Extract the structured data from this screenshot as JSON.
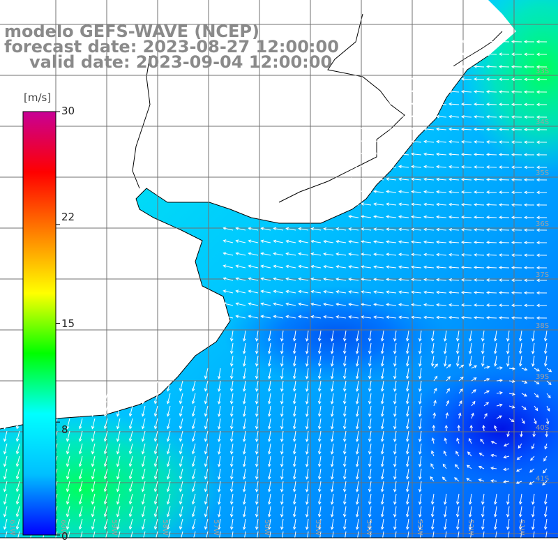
{
  "header": {
    "model_line": "modelo GEFS-WAVE (NCEP)",
    "forecast_line": "forecast date: 2023-08-27 12:00:00",
    "valid_line": "valid date: 2023-09-04 12:00:00",
    "text_color": "#8a8a8a"
  },
  "colorbar": {
    "unit": "[m/s]",
    "ticks": [
      "30",
      "22",
      "15",
      "8",
      "0"
    ],
    "tick_values": [
      30,
      22,
      15,
      8,
      0
    ],
    "min": 0,
    "max": 30,
    "gradient": [
      "#0000ff",
      "#00bfff",
      "#00ffff",
      "#00ff00",
      "#ffff00",
      "#ff8000",
      "#ff0000",
      "#c80096"
    ]
  },
  "map": {
    "land_color": "#ffffff",
    "coast_color": "#000000",
    "grid_color": "#707070",
    "arrow_color": "#ffffff",
    "lat_labels": [
      "33S",
      "34S",
      "35S",
      "36S",
      "37S",
      "38S",
      "39S",
      "40S",
      "41S"
    ],
    "lon_labels": [
      "61W",
      "60W",
      "59W",
      "58W",
      "57W",
      "56W",
      "55W",
      "54W",
      "53W",
      "52W",
      "51W"
    ]
  }
}
